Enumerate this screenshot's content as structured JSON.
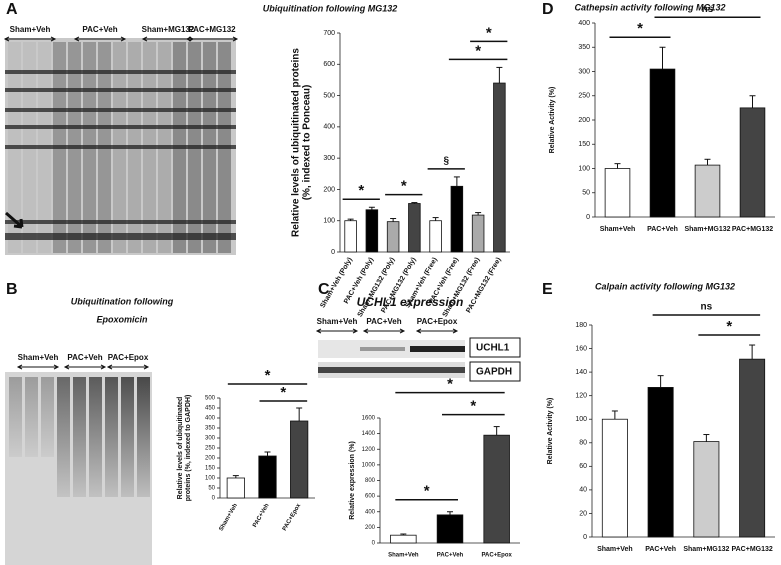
{
  "chart_data": [
    {
      "type": "bar",
      "panel": "A",
      "title": "Ubiquitination following MG132",
      "ylabel": [
        "Relative levels of ubiquitinated proteins",
        "(%, indexed to Ponceau)"
      ],
      "categories": [
        "Sham+Veh (Poly)",
        "PAC+Veh (Poly)",
        "Sham+MG132 (Poly)",
        "PAC+MG132 (Poly)",
        "Sham+Veh (Free)",
        "PAC+Veh (Free)",
        "Sham+MG132 (Free)",
        "PAC+MG132 (Free)"
      ],
      "values": [
        100,
        135,
        97,
        155,
        100,
        210,
        118,
        540
      ],
      "errors": [
        5,
        8,
        10,
        3,
        10,
        30,
        8,
        50
      ],
      "colors": [
        "#ffffff",
        "#000000",
        "#aaaaaa",
        "#444444",
        "#ffffff",
        "#000000",
        "#aaaaaa",
        "#444444"
      ],
      "ylim": [
        0,
        700
      ],
      "yticks": [
        0,
        100,
        200,
        300,
        400,
        500,
        600,
        700
      ],
      "annotations": [
        {
          "text": "*",
          "between": [
            0,
            1
          ]
        },
        {
          "text": "*",
          "between": [
            2,
            3
          ]
        },
        {
          "text": "§",
          "between": [
            4,
            5
          ]
        },
        {
          "text": "*",
          "between": [
            5,
            7
          ]
        },
        {
          "text": "*",
          "between": [
            6,
            7
          ]
        }
      ]
    },
    {
      "type": "bar",
      "panel": "B",
      "title": [
        "Ubiquitination following",
        "Epoxomicin"
      ],
      "ylabel": [
        "Relative levels of ubiquitinated",
        "proteins (%, indexed to GAPDH)"
      ],
      "categories": [
        "Sham+Veh",
        "PAC+Veh",
        "PAC+Epox"
      ],
      "values": [
        100,
        210,
        385
      ],
      "errors": [
        12,
        20,
        65
      ],
      "colors": [
        "#ffffff",
        "#000000",
        "#444444"
      ],
      "ylim": [
        0,
        500
      ],
      "yticks": [
        0,
        50,
        100,
        150,
        200,
        250,
        300,
        350,
        400,
        450,
        500
      ],
      "annotations": [
        {
          "text": "*",
          "between": [
            1,
            2
          ]
        },
        {
          "text": "*",
          "between": [
            0,
            2
          ]
        }
      ]
    },
    {
      "type": "bar",
      "panel": "C",
      "title": "UCHL1 expression",
      "ylabel": [
        "Relative expression (%)"
      ],
      "categories": [
        "Sham+Veh",
        "PAC+Veh",
        "PAC+Epox"
      ],
      "values": [
        100,
        360,
        1380
      ],
      "errors": [
        15,
        40,
        110
      ],
      "colors": [
        "#ffffff",
        "#000000",
        "#444444"
      ],
      "ylim": [
        0,
        1600
      ],
      "yticks": [
        0,
        200,
        400,
        600,
        800,
        1000,
        1200,
        1400,
        1600
      ],
      "annotations": [
        {
          "text": "*",
          "between": [
            0,
            1
          ]
        },
        {
          "text": "*",
          "between": [
            1,
            2
          ]
        },
        {
          "text": "*",
          "between": [
            0,
            2
          ]
        }
      ]
    },
    {
      "type": "bar",
      "panel": "D",
      "title": "Cathepsin activity following MG132",
      "ylabel": [
        "Relative Activity (%)"
      ],
      "categories": [
        "Sham+Veh",
        "PAC+Veh",
        "Sham+MG132",
        "PAC+MG132"
      ],
      "values": [
        100,
        305,
        107,
        225
      ],
      "errors": [
        10,
        45,
        12,
        25
      ],
      "colors": [
        "#ffffff",
        "#000000",
        "#cccccc",
        "#444444"
      ],
      "ylim": [
        0,
        400
      ],
      "yticks": [
        0,
        50,
        100,
        150,
        200,
        250,
        300,
        350,
        400
      ],
      "annotations": [
        {
          "text": "*",
          "between": [
            0,
            1
          ]
        },
        {
          "text": "ns",
          "between": [
            1,
            3
          ]
        }
      ]
    },
    {
      "type": "bar",
      "panel": "E",
      "title": "Calpain activity following MG132",
      "ylabel": [
        "Relative Activity (%)"
      ],
      "categories": [
        "Sham+Veh",
        "PAC+Veh",
        "Sham+MG132",
        "PAC+MG132"
      ],
      "values": [
        100,
        127,
        81,
        151
      ],
      "errors": [
        7,
        10,
        6,
        12
      ],
      "colors": [
        "#ffffff",
        "#000000",
        "#cccccc",
        "#444444"
      ],
      "ylim": [
        0,
        180
      ],
      "yticks": [
        0,
        20,
        40,
        60,
        80,
        100,
        120,
        140,
        160,
        180
      ],
      "annotations": [
        {
          "text": "*",
          "between": [
            2,
            3
          ]
        },
        {
          "text": "ns",
          "between": [
            1,
            3
          ]
        }
      ]
    }
  ],
  "blots": [
    {
      "lanes": [
        "Sham+Veh",
        "PAC+Veh",
        "Sham+MG132",
        "PAC+MG132"
      ]
    },
    {
      "lanes": [
        "Sham+Veh",
        "PAC+Veh",
        "PAC+Epox"
      ]
    },
    {
      "lanes": [
        "Sham+Veh",
        "PAC+Veh",
        "PAC+Epox"
      ],
      "bands": [
        "UCHL1",
        "GAPDH"
      ]
    }
  ]
}
